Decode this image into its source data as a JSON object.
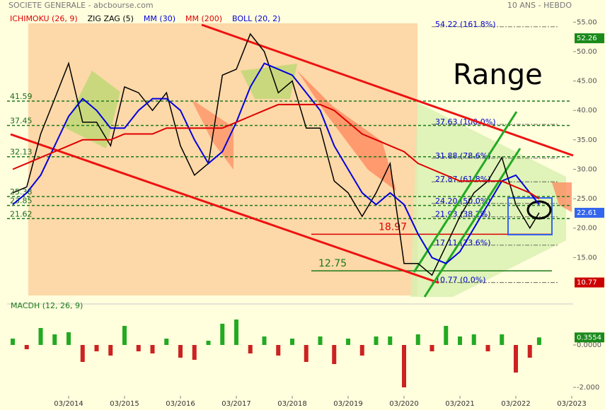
{
  "header": {
    "title": "SOCIETE GENERALE - abcbourse.com",
    "period": "10 ANS - HEBDO"
  },
  "chart_data": [
    {
      "type": "line",
      "overlays": [
        {
          "name": "ICHIMOKU (26, 9)",
          "color": "#dd0000"
        },
        {
          "name": "BOLL (20, 2)",
          "color": "#0000dd"
        }
      ],
      "x": [
        "2013-03",
        "2013-06",
        "2013-09",
        "2013-12",
        "2014-03",
        "2014-06",
        "2014-09",
        "2014-12",
        "2015-03",
        "2015-06",
        "2015-09",
        "2015-12",
        "2016-03",
        "2016-06",
        "2016-09",
        "2016-12",
        "2017-03",
        "2017-06",
        "2017-09",
        "2017-12",
        "2018-03",
        "2018-06",
        "2018-09",
        "2018-12",
        "2019-03",
        "2019-06",
        "2019-09",
        "2019-12",
        "2020-03",
        "2020-06",
        "2020-09",
        "2020-12",
        "2021-03",
        "2021-06",
        "2021-09",
        "2021-12",
        "2022-03",
        "2022-06",
        "2022-08"
      ],
      "series": [
        {
          "name": "ZIG ZAG (5)",
          "color": "#000000",
          "values": [
            26,
            27,
            36,
            42,
            48,
            38,
            38,
            34,
            44,
            43,
            40,
            43,
            34,
            29,
            31,
            46,
            47,
            53,
            50,
            43,
            45,
            37,
            37,
            28,
            26,
            22,
            26,
            31,
            14,
            14,
            12,
            17,
            22,
            26,
            28,
            32,
            24,
            20,
            22.61
          ]
        },
        {
          "name": "MM (30)",
          "color": "#0000dd",
          "values": [
            24,
            26,
            29,
            34,
            39,
            42,
            40,
            37,
            37,
            40,
            42,
            42,
            40,
            35,
            31,
            33,
            38,
            44,
            48,
            47,
            46,
            43,
            40,
            34,
            30,
            26,
            24,
            26,
            24,
            19,
            15,
            14,
            16,
            20,
            24,
            28,
            29,
            26,
            24
          ]
        },
        {
          "name": "MM (200)",
          "color": "#dd0000",
          "values": [
            30,
            31,
            32,
            33,
            34,
            35,
            35,
            35,
            36,
            36,
            36,
            37,
            37,
            37,
            37,
            37,
            38,
            39,
            40,
            41,
            41,
            41,
            41,
            40,
            38,
            36,
            35,
            34,
            33,
            31,
            30,
            29,
            28,
            28,
            28,
            28,
            27,
            26,
            25
          ]
        }
      ],
      "xticks": [
        {
          "value": "2014-03",
          "label": "03/2014"
        },
        {
          "value": "2015-03",
          "label": "03/2015"
        },
        {
          "value": "2016-03",
          "label": "03/2016"
        },
        {
          "value": "2017-03",
          "label": "03/2017"
        },
        {
          "value": "2018-03",
          "label": "03/2018"
        },
        {
          "value": "2019-03",
          "label": "03/2019"
        },
        {
          "value": "2020-03",
          "label": "03/2020"
        },
        {
          "value": "2021-03",
          "label": "03/2021"
        },
        {
          "value": "2022-03",
          "label": "03/2022"
        },
        {
          "value": "2023-03",
          "label": "03/2023"
        }
      ],
      "ylim": [
        10,
        56
      ],
      "yticks": [
        {
          "value": 55,
          "label": "55.00"
        },
        {
          "value": 50,
          "label": "50.00"
        },
        {
          "value": 45,
          "label": "45.00"
        },
        {
          "value": 40,
          "label": "40.00"
        },
        {
          "value": 35,
          "label": "35.00"
        },
        {
          "value": 30,
          "label": "30.00"
        },
        {
          "value": 25,
          "label": "25.00"
        },
        {
          "value": 20,
          "label": "20.00"
        },
        {
          "value": 15,
          "label": "15.00"
        }
      ],
      "price_tags": [
        {
          "value": 52.26,
          "color": "#1a8a1a"
        },
        {
          "value": 22.61,
          "color": "#3366ee"
        },
        {
          "value": 10.77,
          "color": "#cc0000"
        }
      ],
      "levels": [
        41.59,
        37.45,
        32.13,
        25.38,
        23.85,
        21.62
      ],
      "fibonacci": [
        {
          "value": 54.22,
          "label": "54.22  (161.8%)"
        },
        {
          "value": 37.63,
          "label": "37.63  (100.0%)"
        },
        {
          "value": 31.88,
          "label": "31.88  (78.6%)"
        },
        {
          "value": 27.87,
          "label": "27.87  (61.8%)"
        },
        {
          "value": 24.2,
          "label": "24.20  (50.0%)"
        },
        {
          "value": 21.93,
          "label": "21.93  (38.2%)"
        },
        {
          "value": 17.11,
          "label": "17.11  (23.6%)"
        },
        {
          "value": 10.77,
          "label": "10.77  (0.0%)"
        }
      ],
      "supports": [
        {
          "value": 18.97,
          "color": "#dd0000"
        },
        {
          "value": 12.75,
          "color": "#1a7a1a"
        }
      ],
      "annotation": "Range"
    },
    {
      "type": "histogram",
      "title": "MACDH (12, 26, 9)",
      "values": [
        0.3,
        -0.2,
        0.8,
        0.5,
        0.6,
        -0.8,
        -0.3,
        -0.5,
        0.9,
        -0.3,
        -0.4,
        0.3,
        -0.6,
        -0.7,
        0.2,
        1.0,
        1.2,
        -0.4,
        0.4,
        -0.5,
        0.3,
        -0.8,
        0.4,
        -0.9,
        0.3,
        -0.5,
        0.4,
        0.4,
        -2.0,
        0.5,
        -0.3,
        0.9,
        0.4,
        0.5,
        -0.3,
        0.5,
        -1.3,
        -0.6,
        0.3554
      ],
      "colors": {
        "positive": "#22aa22",
        "negative": "#cc2222"
      },
      "ylim": [
        -2.3,
        2.0
      ],
      "yticks": [
        {
          "value": 0,
          "label": "0.0000"
        },
        {
          "value": -2,
          "label": "-2.000"
        }
      ],
      "last_tag": {
        "value": 0.3554,
        "color": "#1a8a1a"
      }
    }
  ]
}
